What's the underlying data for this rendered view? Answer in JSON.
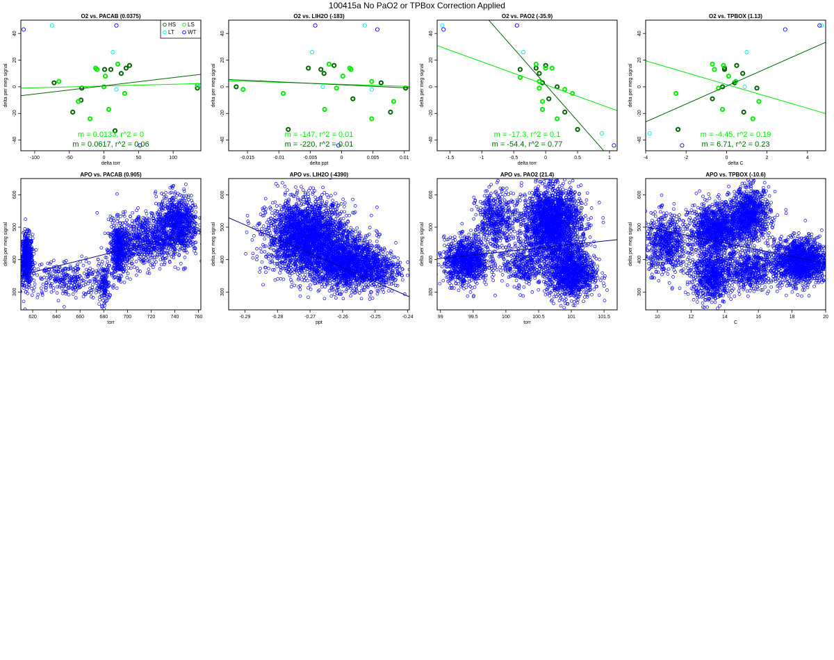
{
  "title": "100415a   No PaO2 or TPBox Correction Applied",
  "colors": {
    "HS": "#006400",
    "LS": "#00ee00",
    "LT": "#00e5ee",
    "WT": "#0000ff",
    "apo": "#0000ff"
  },
  "chart_data": [
    {
      "type": "scatter",
      "title": "O2 vs. PACAB (0.0375)",
      "xlabel": "delta torr",
      "ylabel": "delta per meg signal",
      "xlim": [
        -120,
        140
      ],
      "ylim": [
        -48,
        50
      ],
      "xticks": [
        -100,
        -50,
        0,
        50,
        100
      ],
      "yticks": [
        -40,
        -20,
        0,
        20,
        40
      ],
      "legend": {
        "position": "top-right",
        "entries": [
          "HS",
          "LS",
          "LT",
          "WT"
        ]
      },
      "series": [
        {
          "name": "HS",
          "points": [
            [
              -72,
              3
            ],
            [
              -45,
              -19
            ],
            [
              -33,
              -10
            ],
            [
              -32,
              -1
            ],
            [
              1,
              13
            ],
            [
              10,
              13
            ],
            [
              16,
              -33
            ],
            [
              25,
              10
            ],
            [
              32,
              14
            ],
            [
              37,
              16
            ],
            [
              135,
              -1
            ]
          ]
        },
        {
          "name": "LS",
          "points": [
            [
              -65,
              4
            ],
            [
              -37,
              -11
            ],
            [
              -20,
              -24
            ],
            [
              -12,
              14
            ],
            [
              -10,
              13
            ],
            [
              0,
              0
            ],
            [
              2,
              8
            ],
            [
              7,
              -17
            ],
            [
              20,
              17
            ],
            [
              30,
              -5
            ],
            [
              135,
              1
            ]
          ]
        },
        {
          "name": "LT",
          "points": [
            [
              -75,
              46
            ],
            [
              13,
              26
            ],
            [
              18,
              -2
            ],
            [
              140,
              1
            ]
          ]
        },
        {
          "name": "WT",
          "points": [
            [
              -116,
              43
            ],
            [
              18,
              46
            ],
            [
              52,
              -44
            ]
          ]
        }
      ],
      "fits": [
        {
          "color": "LS",
          "slope": 0.0133,
          "intercept": 0.6,
          "label": "m = 0.0133, r^2 = 0"
        },
        {
          "color": "HS",
          "slope": 0.0617,
          "intercept": 0.7,
          "label": "m = 0.0617, r^2 = 0.06"
        }
      ]
    },
    {
      "type": "scatter",
      "title": "O2 vs. LIH2O (-183)",
      "xlabel": "delta ppt",
      "ylabel": "delta per meg signal",
      "xlim": [
        -0.018,
        0.0108
      ],
      "ylim": [
        -48,
        50
      ],
      "xticks": [
        -0.015,
        -0.01,
        -0.005,
        0,
        0.005,
        0.01
      ],
      "yticks": [
        -40,
        -20,
        0,
        20,
        40
      ],
      "series": [
        {
          "name": "HS",
          "points": [
            [
              -0.0168,
              0
            ],
            [
              -0.0085,
              -32
            ],
            [
              -0.0053,
              14
            ],
            [
              -0.0033,
              13
            ],
            [
              -0.0028,
              10
            ],
            [
              -0.0012,
              16
            ],
            [
              0.0018,
              -9
            ],
            [
              0.0063,
              3
            ],
            [
              0.0078,
              -19
            ],
            [
              0.0102,
              -1
            ]
          ]
        },
        {
          "name": "LS",
          "points": [
            [
              -0.0157,
              -2
            ],
            [
              -0.0093,
              -5
            ],
            [
              -0.0027,
              -17
            ],
            [
              -0.002,
              17
            ],
            [
              -0.0008,
              -1
            ],
            [
              0.0002,
              8
            ],
            [
              0.0013,
              14
            ],
            [
              0.0015,
              13
            ],
            [
              0.0048,
              -24
            ],
            [
              0.0048,
              4
            ],
            [
              0.0083,
              -11
            ]
          ]
        },
        {
          "name": "LT",
          "points": [
            [
              -0.0047,
              26
            ],
            [
              -0.003,
              0
            ],
            [
              0.0037,
              46
            ],
            [
              0.0048,
              -2
            ]
          ]
        },
        {
          "name": "WT",
          "points": [
            [
              -0.0042,
              46
            ],
            [
              0.0057,
              43
            ],
            [
              -0.0005,
              -44
            ]
          ]
        }
      ],
      "fits": [
        {
          "color": "LS",
          "slope": -147,
          "intercept": 1.9,
          "label": "m = -147, r^2 = 0.01"
        },
        {
          "color": "HS",
          "slope": -220,
          "intercept": 1.5,
          "label": "m = -220, r^2 = 0.01"
        }
      ]
    },
    {
      "type": "scatter",
      "title": "O2 vs. PAO2 (-35.9)",
      "xlabel": "delta torr",
      "ylabel": "delta per meg signal",
      "xlim": [
        -1.7,
        1.12
      ],
      "ylim": [
        -48,
        50
      ],
      "xticks": [
        -1.5,
        -1.0,
        -0.5,
        0.0,
        0.5,
        1.0
      ],
      "yticks": [
        -40,
        -20,
        0,
        20,
        40
      ],
      "series": [
        {
          "name": "HS",
          "points": [
            [
              -0.4,
              13
            ],
            [
              -0.15,
              14
            ],
            [
              -0.1,
              10
            ],
            [
              -0.05,
              3
            ],
            [
              0.0,
              16
            ],
            [
              0.05,
              -9
            ],
            [
              0.18,
              0
            ],
            [
              0.3,
              -19
            ],
            [
              0.5,
              -32
            ]
          ]
        },
        {
          "name": "LS",
          "points": [
            [
              -0.4,
              7
            ],
            [
              -0.15,
              17
            ],
            [
              -0.1,
              4
            ],
            [
              -0.1,
              -1
            ],
            [
              -0.05,
              -11
            ],
            [
              -0.05,
              -17
            ],
            [
              0.0,
              14
            ],
            [
              0.1,
              14
            ],
            [
              0.18,
              -24
            ],
            [
              0.3,
              -2
            ],
            [
              0.42,
              -5
            ]
          ]
        },
        {
          "name": "LT",
          "points": [
            [
              -1.62,
              46
            ],
            [
              -0.35,
              26
            ],
            [
              0.88,
              -35
            ]
          ]
        },
        {
          "name": "WT",
          "points": [
            [
              -1.6,
              43
            ],
            [
              -0.45,
              46
            ],
            [
              1.07,
              -44
            ]
          ]
        }
      ],
      "fits": [
        {
          "color": "LS",
          "slope": -17.3,
          "intercept": 1.5,
          "label": "m = -17.3, r^2 = 0.1"
        },
        {
          "color": "HS",
          "slope": -54.4,
          "intercept": 1.5,
          "label": "m = -54.4, r^2 = 0.77"
        }
      ]
    },
    {
      "type": "scatter",
      "title": "O2 vs. TPBOX (1.13)",
      "xlabel": "delta C",
      "ylabel": "delta per meg signal",
      "xlim": [
        -4,
        4.9
      ],
      "ylim": [
        -48,
        50
      ],
      "xticks": [
        -4,
        -2,
        0,
        2,
        4
      ],
      "yticks": [
        -40,
        -20,
        0,
        20,
        40
      ],
      "series": [
        {
          "name": "HS",
          "points": [
            [
              -2.4,
              -32
            ],
            [
              -0.7,
              -9
            ],
            [
              -0.2,
              0
            ],
            [
              -0.1,
              14
            ],
            [
              -0.1,
              13
            ],
            [
              0.4,
              3
            ],
            [
              0.5,
              16
            ],
            [
              0.8,
              10
            ],
            [
              0.85,
              -19
            ],
            [
              1.5,
              -1
            ]
          ]
        },
        {
          "name": "LS",
          "points": [
            [
              -2.5,
              -5
            ],
            [
              -0.6,
              13
            ],
            [
              -0.4,
              -1
            ],
            [
              -0.2,
              -17
            ],
            [
              -0.15,
              16
            ],
            [
              0.1,
              8
            ],
            [
              0.45,
              4
            ],
            [
              1.3,
              -24
            ],
            [
              1.6,
              -11
            ],
            [
              -0.7,
              17
            ]
          ]
        },
        {
          "name": "LT",
          "points": [
            [
              -3.8,
              -35
            ],
            [
              0.9,
              0
            ],
            [
              1.0,
              26
            ],
            [
              4.7,
              46
            ]
          ]
        },
        {
          "name": "WT",
          "points": [
            [
              -2.2,
              -44
            ],
            [
              2.9,
              43
            ],
            [
              4.6,
              46
            ]
          ]
        }
      ],
      "fits": [
        {
          "color": "LS",
          "slope": -4.45,
          "intercept": 1.7,
          "label": "m = -4.45, r^2 = 0.19"
        },
        {
          "color": "HS",
          "slope": 6.71,
          "intercept": 0.5,
          "label": "m = 6.71, r^2 = 0.23"
        }
      ]
    },
    {
      "type": "scatter",
      "title": "APO vs. PACAB (0.905)",
      "xlabel": "torr",
      "ylabel": "delta per meg signal",
      "xlim": [
        610,
        762
      ],
      "ylim": [
        245,
        650
      ],
      "xticks": [
        620,
        640,
        660,
        680,
        700,
        720,
        740,
        760
      ],
      "yticks": [
        300,
        400,
        500,
        600
      ],
      "fit": {
        "slope": 0.905,
        "intercept": -200
      },
      "clusters": [
        {
          "cx": 615,
          "sx": 2.5,
          "cy": 400,
          "sy": 38,
          "n": 600
        },
        {
          "cx": 650,
          "sx": 18,
          "cy": 340,
          "sy": 30,
          "n": 320
        },
        {
          "cx": 680,
          "sx": 2.5,
          "cy": 320,
          "sy": 30,
          "n": 120
        },
        {
          "cx": 693,
          "sx": 4,
          "cy": 430,
          "sy": 40,
          "n": 500
        },
        {
          "cx": 715,
          "sx": 12,
          "cy": 460,
          "sy": 40,
          "n": 600
        },
        {
          "cx": 742,
          "sx": 9,
          "cy": 510,
          "sy": 45,
          "n": 900
        }
      ]
    },
    {
      "type": "scatter",
      "title": "APO vs. LIH2O (-4390)",
      "xlabel": "ppt",
      "ylabel": "delta per meg signal",
      "xlim": [
        -0.295,
        -0.2395
      ],
      "ylim": [
        245,
        650
      ],
      "xticks": [
        -0.29,
        -0.28,
        -0.27,
        -0.26,
        -0.25,
        -0.24
      ],
      "yticks": [
        300,
        400,
        500,
        600
      ],
      "fit": {
        "slope": -4390,
        "intercept": -766
      },
      "clusters": [
        {
          "cx": -0.271,
          "sx": 0.006,
          "cy": 470,
          "sy": 55,
          "n": 2600
        },
        {
          "cx": -0.259,
          "sx": 0.005,
          "cy": 390,
          "sy": 40,
          "n": 1500
        },
        {
          "cx": -0.25,
          "sx": 0.004,
          "cy": 370,
          "sy": 30,
          "n": 400
        }
      ]
    },
    {
      "type": "scatter",
      "title": "APO vs. PAO2 (21.4)",
      "xlabel": "torr",
      "ylabel": "delta per meg signal",
      "xlim": [
        98.95,
        101.7
      ],
      "ylim": [
        245,
        650
      ],
      "xticks": [
        99.0,
        99.5,
        100.0,
        100.5,
        101.0,
        101.5
      ],
      "yticks": [
        300,
        400,
        500,
        600
      ],
      "fit": {
        "slope": 21.4,
        "intercept": -1715
      },
      "clusters": [
        {
          "cx": 99.4,
          "sx": 0.17,
          "cy": 395,
          "sy": 35,
          "n": 1000
        },
        {
          "cx": 99.85,
          "sx": 0.15,
          "cy": 520,
          "sy": 45,
          "n": 500
        },
        {
          "cx": 100.7,
          "sx": 0.22,
          "cy": 510,
          "sy": 55,
          "n": 2400
        },
        {
          "cx": 101.0,
          "sx": 0.18,
          "cy": 360,
          "sy": 40,
          "n": 1200
        },
        {
          "cx": 100.25,
          "sx": 0.15,
          "cy": 380,
          "sy": 30,
          "n": 300
        }
      ]
    },
    {
      "type": "scatter",
      "title": "APO vs. TPBOX (-10.6)",
      "xlabel": "C",
      "ylabel": "delta per meg signal",
      "xlim": [
        9.3,
        20
      ],
      "ylim": [
        245,
        650
      ],
      "xticks": [
        10,
        12,
        14,
        16,
        18,
        20
      ],
      "yticks": [
        300,
        400,
        500,
        600
      ],
      "fit": {
        "slope": -10.6,
        "intercept": 600
      },
      "clusters": [
        {
          "cx": 10.5,
          "sx": 0.6,
          "cy": 450,
          "sy": 45,
          "n": 600
        },
        {
          "cx": 13.5,
          "sx": 0.8,
          "cy": 490,
          "sy": 40,
          "n": 1200
        },
        {
          "cx": 15.5,
          "sx": 0.6,
          "cy": 540,
          "sy": 40,
          "n": 900
        },
        {
          "cx": 13.2,
          "sx": 0.6,
          "cy": 350,
          "sy": 40,
          "n": 700
        },
        {
          "cx": 15.5,
          "sx": 0.7,
          "cy": 370,
          "sy": 30,
          "n": 500
        },
        {
          "cx": 18.5,
          "sx": 0.8,
          "cy": 395,
          "sy": 35,
          "n": 1500
        }
      ]
    }
  ]
}
